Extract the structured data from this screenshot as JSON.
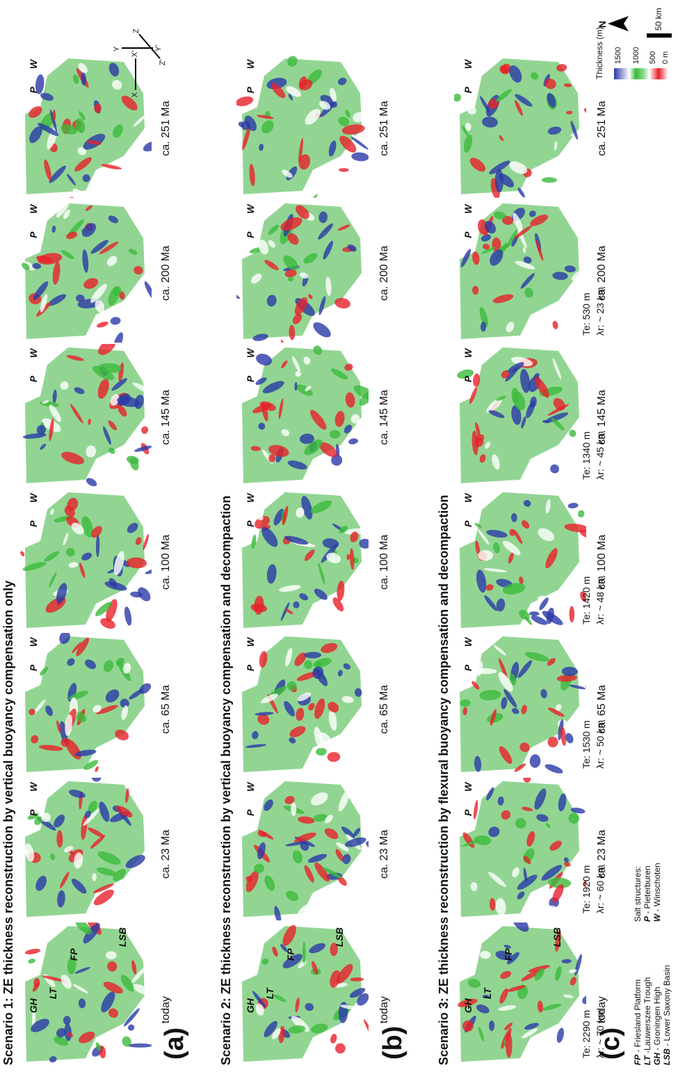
{
  "scenarios": [
    {
      "title": "Scenario 1: ZE thickness reconstruction by vertical buoyancy compensation only",
      "letter": "(a)"
    },
    {
      "title": "Scenario 2: ZE thickness reconstruction by vertical buoyancy compensation and decompaction",
      "letter": "(b)"
    },
    {
      "title": "Scenario 3: ZE thickness reconstruction by flexural buoyancy compensation and decompaction",
      "letter": "(c)"
    }
  ],
  "ages": [
    "today",
    "ca. 23 Ma",
    "ca. 65 Ma",
    "ca. 100 Ma",
    "ca. 145 Ma",
    "ca. 200 Ma",
    "ca. 251 Ma"
  ],
  "region_labels": {
    "fp": "FP",
    "lt": "LT",
    "gh": "GH",
    "lsb": "LSB",
    "p": "P",
    "w": "W"
  },
  "flexure": [
    {
      "te": "Te: 2290 m",
      "lambda": "λr: ~ 70 km"
    },
    {
      "te": "Te: 1920 m",
      "lambda": "λr: ~ 60 km"
    },
    {
      "te": "Te: 1530 m",
      "lambda": "λr: ~ 50 km"
    },
    {
      "te": "Te: 1420 m",
      "lambda": "λr: ~ 48 km"
    },
    {
      "te": "Te: 1340 m",
      "lambda": "λr: ~ 45 km"
    },
    {
      "te": "Te: 530 m",
      "lambda": "λr: ~ 23 km"
    }
  ],
  "legend": {
    "abbrev": [
      {
        "key": "FP",
        "text": " - Friesland Platform"
      },
      {
        "key": "LT",
        "text": " -Lauwerszee Trough"
      },
      {
        "key": "GH",
        "text": " - Groningen High"
      },
      {
        "key": "LSB",
        "text": " - Lower Saxony Basin"
      }
    ],
    "salt_title": "Salt structures:",
    "salt": [
      {
        "key": "P",
        "text": " - Pieterburen"
      },
      {
        "key": "W",
        "text": " - Winschoten"
      }
    ]
  },
  "colorbar": {
    "title": "Thickness (m)",
    "ticks": [
      "1500",
      "1000",
      "500",
      "0 m"
    ],
    "colors": {
      "thick": "#2a3aa8",
      "medium": "#3cba3c",
      "thin": "#e8202a"
    }
  },
  "scalebar": "50 km",
  "north": "N",
  "axes": {
    "x": "X",
    "x2": "X'",
    "y": "Y",
    "y2": "Y'",
    "z": "Z",
    "z2": "Z'"
  }
}
